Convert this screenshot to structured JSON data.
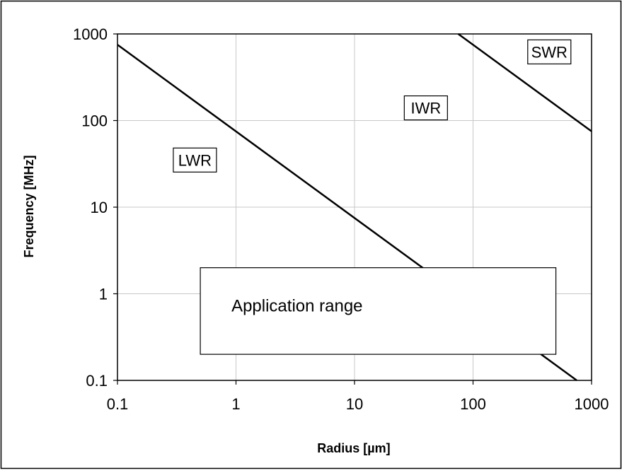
{
  "chart_data": {
    "type": "line",
    "xlabel": "Radius [µm]",
    "ylabel": "Frequency [MHz]",
    "xscale": "log",
    "yscale": "log",
    "xlim": [
      0.1,
      1000
    ],
    "ylim": [
      0.1,
      1000
    ],
    "grid": true,
    "x_ticks": [
      0.1,
      1,
      10,
      100,
      1000
    ],
    "x_tick_labels": [
      "0.1",
      "1",
      "10",
      "100",
      "1000"
    ],
    "y_ticks": [
      0.1,
      1,
      10,
      100,
      1000
    ],
    "y_tick_labels": [
      "0.1",
      "1",
      "10",
      "100",
      "1000"
    ],
    "series": [
      {
        "x": [
          0.1,
          750
        ],
        "y": [
          750,
          0.1
        ]
      },
      {
        "x": [
          75,
          1000
        ],
        "y": [
          1000,
          75
        ]
      }
    ],
    "regions": [
      {
        "label": "LWR",
        "x": 0.45,
        "y": 35
      },
      {
        "label": "IWR",
        "x": 40,
        "y": 140
      },
      {
        "label": "SWR",
        "x": 440,
        "y": 620
      }
    ],
    "annotation_box": {
      "label": "Application range",
      "x_range": [
        0.5,
        500
      ],
      "y_range": [
        0.2,
        2
      ]
    }
  }
}
